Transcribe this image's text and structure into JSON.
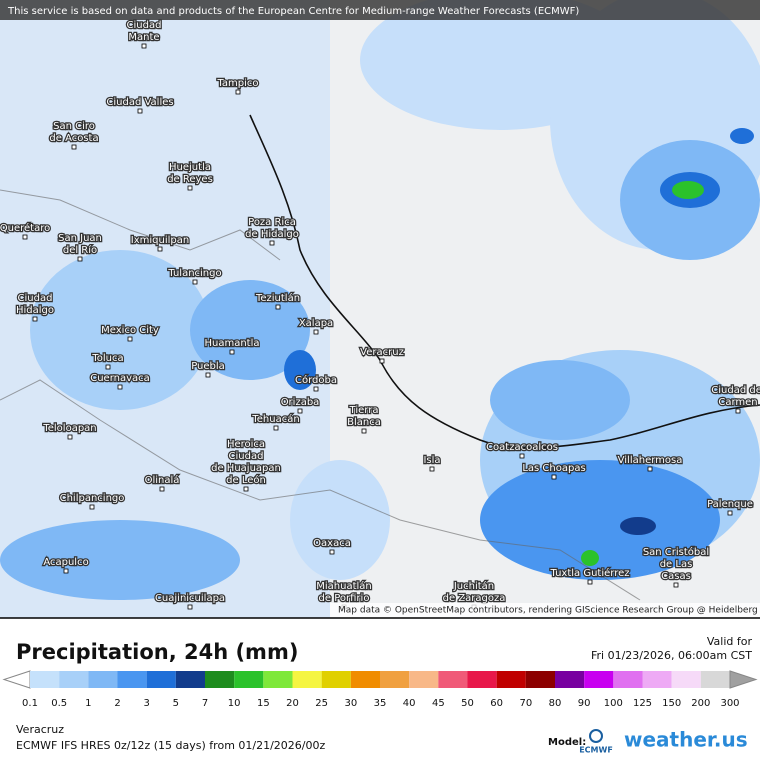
{
  "banner": "This service is based on data and products of the European Centre for Medium-range Weather Forecasts (ECMWF)",
  "cities": [
    [
      "Ciudad",
      "Mante"
    ],
    [
      "Tampico"
    ],
    [
      "Ciudad Valles"
    ],
    [
      "San Ciro",
      "de Acosta"
    ],
    [
      "Huejutla",
      "de Reyes"
    ],
    [
      "Poza Rica",
      "de Hidalgo"
    ],
    [
      "Querétaro"
    ],
    [
      "San Juan",
      "del Río"
    ],
    [
      "Ixmiquilpan"
    ],
    [
      "Tulancingo"
    ],
    [
      "Teziutlán"
    ],
    [
      "Ciudad",
      "Hidalgo"
    ],
    [
      "Xalapa"
    ],
    [
      "Mexico City"
    ],
    [
      "Huamantla"
    ],
    [
      "Veracruz"
    ],
    [
      "Toluca"
    ],
    [
      "Puebla"
    ],
    [
      "Córdoba"
    ],
    [
      "Cuernavaca"
    ],
    [
      "Orizaba"
    ],
    [
      "Tierra",
      "Blanca"
    ],
    [
      "Tehuacán"
    ],
    [
      "Teloloapan"
    ],
    [
      "Heroica",
      "Ciudad",
      "de Huajuapan",
      "de León"
    ],
    [
      "Isla"
    ],
    [
      "Coatzacoalcos"
    ],
    [
      "Las Choapas"
    ],
    [
      "Villahermosa"
    ],
    [
      "Ciudad del",
      "Carmen"
    ],
    [
      "Olinalá"
    ],
    [
      "Chilpancingo"
    ],
    [
      "Palenque"
    ],
    [
      "Oaxaca"
    ],
    [
      "San Cristóbal",
      "de Las",
      "Casas"
    ],
    [
      "Acapulco"
    ],
    [
      "Tuxtla Gutiérrez"
    ],
    [
      "Cuajinicuilapa"
    ],
    [
      "Miahuatlán",
      "de Porfirio"
    ],
    [
      "Juchitán",
      "de Zaragoza"
    ]
  ],
  "attribution": "Map data © OpenStreetMap contributors, rendering GIScience Research Group @ Heidelberg University",
  "title": "Precipitation, 24h (mm)",
  "valid_label": "Valid for",
  "valid_time": "Fri 01/23/2026, 06:00am CST",
  "legend": {
    "labels": [
      0.1,
      0.5,
      1,
      2,
      3,
      5,
      7,
      10,
      15,
      20,
      25,
      30,
      35,
      40,
      45,
      50,
      60,
      70,
      80,
      90,
      100,
      125,
      150,
      200,
      300
    ],
    "colors": [
      "#ffffff",
      "#c5e1fb",
      "#a8d0f8",
      "#7fb8f5",
      "#4a96f0",
      "#1f6fd8",
      "#123c8c",
      "#1e8c1e",
      "#2bc22b",
      "#7ee83a",
      "#f5f542",
      "#e0d000",
      "#f08c00",
      "#f0a040",
      "#f8b888",
      "#f05a78",
      "#e8184a",
      "#c00000",
      "#8c0000",
      "#7800a0",
      "#c800f0",
      "#e070f0",
      "#eeaaf5",
      "#f6daf8",
      "#d8d8d8",
      "#a0a0a0"
    ]
  },
  "location": "Veracruz",
  "model_run": "ECMWF IFS HRES 0z/12z (15 days) from 01/21/2026/00z",
  "model_label": "Model:",
  "logo_ecmwf": "ECMWF",
  "logo_weather": "weather.us"
}
